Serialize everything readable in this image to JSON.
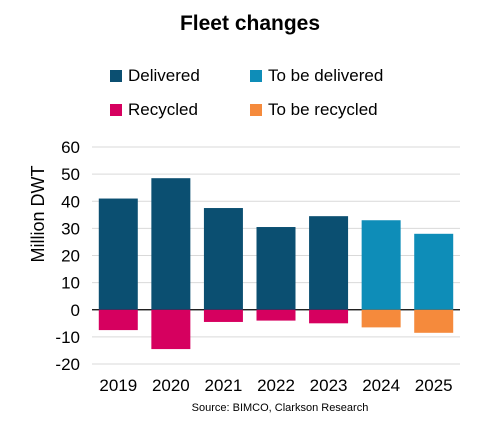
{
  "chart_data": {
    "type": "bar",
    "title": "Fleet changes",
    "ylabel": "Million DWT",
    "xlabel": "",
    "categories": [
      "2019",
      "2020",
      "2021",
      "2022",
      "2023",
      "2024",
      "2025"
    ],
    "series": [
      {
        "name": "Delivered",
        "color": "#0B4F71",
        "values": [
          41,
          48.5,
          37.5,
          30.5,
          34.5,
          null,
          null
        ]
      },
      {
        "name": "To be delivered",
        "color": "#0E8DB8",
        "values": [
          null,
          null,
          null,
          null,
          null,
          33,
          28
        ]
      },
      {
        "name": "Recycled",
        "color": "#D6005F",
        "values": [
          -7.5,
          -14.5,
          -4.5,
          -4,
          -5,
          null,
          null
        ]
      },
      {
        "name": "To be recycled",
        "color": "#F58A3C",
        "values": [
          null,
          null,
          null,
          null,
          null,
          -6.5,
          -8.5
        ]
      }
    ],
    "ylim": [
      -20,
      60
    ],
    "yticks": [
      "-20",
      "-10",
      "0",
      "10",
      "20",
      "30",
      "40",
      "50",
      "60"
    ],
    "grid": true,
    "legend": "top",
    "source": "Source: BIMCO, Clarkson Research"
  }
}
